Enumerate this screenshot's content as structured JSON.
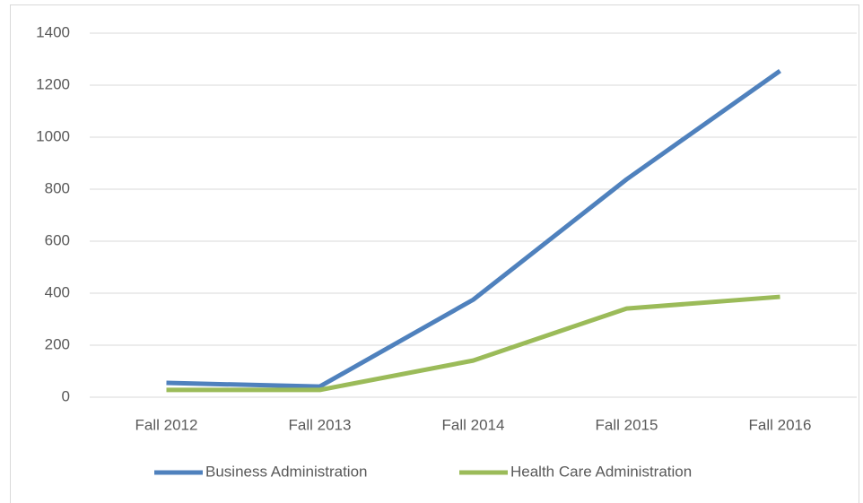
{
  "chart_data": {
    "type": "line",
    "categories": [
      "Fall 2012",
      "Fall 2013",
      "Fall 2014",
      "Fall 2015",
      "Fall 2016"
    ],
    "series": [
      {
        "name": "Business Administration",
        "color": "#4f81bd",
        "values": [
          55,
          41,
          375,
          838,
          1255
        ]
      },
      {
        "name": "Health Care Administration",
        "color": "#9bbb59",
        "values": [
          28,
          28,
          141,
          341,
          386
        ]
      }
    ],
    "ylim": [
      0,
      1400
    ],
    "yticks": [
      0,
      200,
      400,
      600,
      800,
      1000,
      1200,
      1400
    ],
    "grid": true,
    "legend": "bottom"
  }
}
